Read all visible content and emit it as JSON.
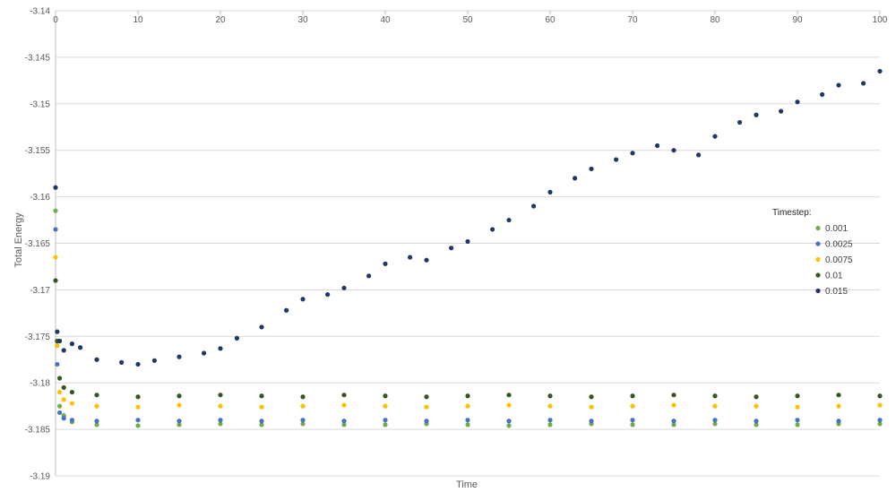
{
  "chart_data": {
    "type": "scatter",
    "title": "",
    "xlabel": "Time",
    "ylabel": "Total Energy",
    "xlim": [
      0,
      100
    ],
    "ylim": [
      -3.19,
      -3.14
    ],
    "xticks": [
      0,
      10,
      20,
      30,
      40,
      50,
      60,
      70,
      80,
      90,
      100
    ],
    "yticks": [
      -3.14,
      -3.145,
      -3.15,
      -3.155,
      -3.16,
      -3.165,
      -3.17,
      -3.175,
      -3.18,
      -3.185,
      -3.19
    ],
    "xtick_labels": [
      "0",
      "10",
      "20",
      "30",
      "40",
      "50",
      "60",
      "70",
      "80",
      "90",
      "100"
    ],
    "ytick_labels": [
      "-3.14",
      "-3.145",
      "-3.15",
      "-3.155",
      "-3.16",
      "-3.165",
      "-3.17",
      "-3.175",
      "-3.18",
      "-3.185",
      "-3.19"
    ],
    "grid": true,
    "legend": {
      "title": "Timestep:",
      "placement": "right"
    },
    "series": [
      {
        "name": "0.001",
        "color": "#70AD47",
        "x": [
          0,
          0.2,
          0.5,
          1,
          2,
          5,
          10,
          15,
          20,
          25,
          30,
          35,
          40,
          45,
          50,
          55,
          60,
          65,
          70,
          75,
          80,
          85,
          90,
          95,
          100
        ],
        "y": [
          -3.1615,
          -3.176,
          -3.1825,
          -3.1835,
          -3.1842,
          -3.1845,
          -3.1846,
          -3.1845,
          -3.1844,
          -3.1845,
          -3.1844,
          -3.1845,
          -3.1845,
          -3.1844,
          -3.1845,
          -3.1846,
          -3.1845,
          -3.1844,
          -3.1845,
          -3.1845,
          -3.1844,
          -3.1845,
          -3.1845,
          -3.1844,
          -3.1844
        ]
      },
      {
        "name": "0.0025",
        "color": "#4472C4",
        "x": [
          0,
          0.2,
          0.5,
          1,
          2,
          5,
          10,
          15,
          20,
          25,
          30,
          35,
          40,
          45,
          50,
          55,
          60,
          65,
          70,
          75,
          80,
          85,
          90,
          95,
          100
        ],
        "y": [
          -3.1635,
          -3.178,
          -3.1832,
          -3.1838,
          -3.184,
          -3.1841,
          -3.184,
          -3.1841,
          -3.184,
          -3.1841,
          -3.184,
          -3.1841,
          -3.184,
          -3.1841,
          -3.184,
          -3.1841,
          -3.184,
          -3.1841,
          -3.184,
          -3.1841,
          -3.184,
          -3.1841,
          -3.184,
          -3.1841,
          -3.184
        ]
      },
      {
        "name": "0.0075",
        "color": "#FFC000",
        "x": [
          0,
          0.2,
          0.5,
          1,
          2,
          5,
          10,
          15,
          20,
          25,
          30,
          35,
          40,
          45,
          50,
          55,
          60,
          65,
          70,
          75,
          80,
          85,
          90,
          95,
          100
        ],
        "y": [
          -3.1665,
          -3.176,
          -3.181,
          -3.1818,
          -3.1822,
          -3.1825,
          -3.1826,
          -3.1824,
          -3.1825,
          -3.1826,
          -3.1825,
          -3.1824,
          -3.1825,
          -3.1826,
          -3.1825,
          -3.1824,
          -3.1825,
          -3.1826,
          -3.1825,
          -3.1824,
          -3.1825,
          -3.1825,
          -3.1826,
          -3.1825,
          -3.1824
        ]
      },
      {
        "name": "0.01",
        "color": "#375623",
        "x": [
          0,
          0.2,
          0.5,
          1,
          2,
          5,
          10,
          15,
          20,
          25,
          30,
          35,
          40,
          45,
          50,
          55,
          60,
          65,
          70,
          75,
          80,
          85,
          90,
          95,
          100
        ],
        "y": [
          -3.169,
          -3.1755,
          -3.1795,
          -3.1805,
          -3.181,
          -3.1813,
          -3.1815,
          -3.1814,
          -3.1813,
          -3.1814,
          -3.1815,
          -3.1813,
          -3.1814,
          -3.1815,
          -3.1814,
          -3.1813,
          -3.1814,
          -3.1815,
          -3.1814,
          -3.1813,
          -3.1814,
          -3.1815,
          -3.1814,
          -3.1813,
          -3.1814
        ]
      },
      {
        "name": "0.015",
        "color": "#203864",
        "x": [
          0,
          0.2,
          0.5,
          1,
          2,
          3,
          5,
          8,
          10,
          12,
          15,
          18,
          20,
          22,
          25,
          28,
          30,
          33,
          35,
          38,
          40,
          43,
          45,
          48,
          50,
          53,
          55,
          58,
          60,
          63,
          65,
          68,
          70,
          73,
          75,
          78,
          80,
          83,
          85,
          88,
          90,
          93,
          95,
          98,
          100
        ],
        "y": [
          -3.159,
          -3.1745,
          -3.1755,
          -3.1765,
          -3.1758,
          -3.1762,
          -3.1775,
          -3.1778,
          -3.178,
          -3.1776,
          -3.1772,
          -3.1768,
          -3.1763,
          -3.1752,
          -3.174,
          -3.1722,
          -3.171,
          -3.1705,
          -3.1698,
          -3.1685,
          -3.1672,
          -3.1665,
          -3.1668,
          -3.1655,
          -3.1648,
          -3.1635,
          -3.1625,
          -3.161,
          -3.1595,
          -3.158,
          -3.157,
          -3.156,
          -3.1553,
          -3.1545,
          -3.155,
          -3.1555,
          -3.1535,
          -3.152,
          -3.1512,
          -3.1508,
          -3.1498,
          -3.149,
          -3.148,
          -3.1478,
          -3.1465
        ]
      }
    ]
  }
}
